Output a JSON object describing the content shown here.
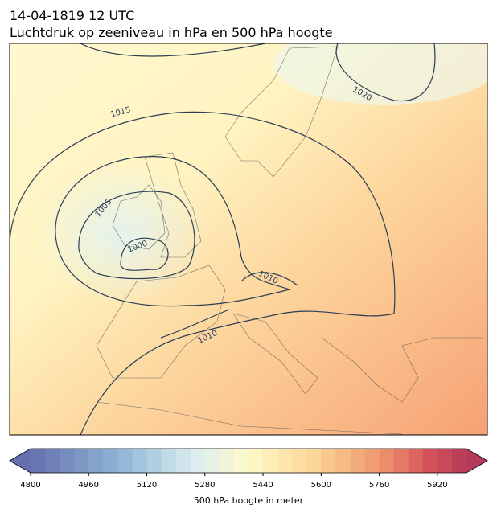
{
  "header": {
    "date": "14-04-1819 12 UTC",
    "title": "Luchtdruk op zeeniveau in hPa en 500 hPa hoogte"
  },
  "map": {
    "contour_labels": [
      "1015",
      "1020",
      "1005",
      "1000",
      "1010",
      "1010"
    ]
  },
  "colorbar": {
    "lim": [
      4800,
      6000
    ],
    "ticks": [
      4800,
      4960,
      5120,
      5280,
      5440,
      5600,
      5760,
      5920
    ],
    "label": "500 hPa hoogte in meter"
  }
}
